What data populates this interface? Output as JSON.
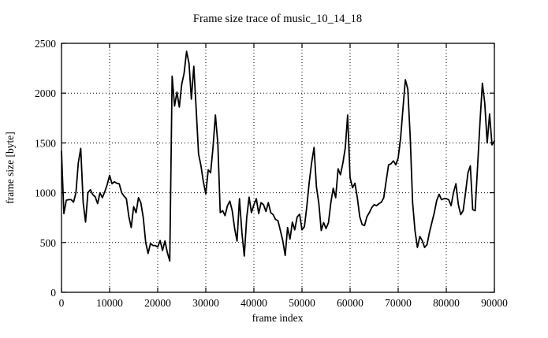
{
  "chart_data": {
    "type": "line",
    "title": "Frame size trace of music_10_14_18",
    "xlabel": "frame index",
    "ylabel": "frame size [byte]",
    "xlim": [
      0,
      90000
    ],
    "ylim": [
      0,
      2500
    ],
    "xticks": [
      0,
      10000,
      20000,
      30000,
      40000,
      50000,
      60000,
      70000,
      80000,
      90000
    ],
    "yticks": [
      0,
      500,
      1000,
      1500,
      2000,
      2500
    ],
    "grid": "dotted",
    "legend": false,
    "line_color": "#000000",
    "background_color": "#ffffff",
    "series_name": "frame size",
    "x_start": 0,
    "x_step": 500,
    "values": [
      1415,
      790,
      925,
      930,
      930,
      905,
      1000,
      1300,
      1445,
      900,
      706,
      1000,
      1030,
      980,
      960,
      890,
      1000,
      950,
      1010,
      1080,
      1175,
      1090,
      1110,
      1095,
      1090,
      1000,
      965,
      940,
      760,
      650,
      860,
      800,
      950,
      900,
      750,
      500,
      390,
      490,
      470,
      470,
      455,
      520,
      420,
      515,
      400,
      315,
      2170,
      1870,
      2010,
      1860,
      2090,
      2200,
      2420,
      2300,
      1940,
      2270,
      1840,
      1390,
      1270,
      1110,
      990,
      1230,
      1200,
      1450,
      1780,
      1490,
      800,
      820,
      770,
      870,
      915,
      820,
      640,
      515,
      940,
      600,
      365,
      750,
      955,
      800,
      880,
      940,
      790,
      900,
      880,
      812,
      900,
      800,
      780,
      732,
      720,
      620,
      520,
      370,
      650,
      535,
      705,
      627,
      757,
      784,
      627,
      660,
      860,
      1100,
      1300,
      1455,
      1060,
      890,
      620,
      700,
      640,
      700,
      900,
      1045,
      950,
      1240,
      1180,
      1300,
      1450,
      1780,
      1150,
      1050,
      1095,
      950,
      760,
      680,
      670,
      760,
      800,
      850,
      880,
      870,
      890,
      905,
      950,
      1120,
      1280,
      1290,
      1320,
      1280,
      1350,
      1550,
      1850,
      2135,
      2040,
      1550,
      900,
      620,
      450,
      560,
      520,
      450,
      480,
      600,
      700,
      800,
      920,
      985,
      930,
      940,
      940,
      930,
      870,
      1000,
      1090,
      880,
      780,
      820,
      1000,
      1200,
      1270,
      830,
      820,
      1250,
      1700,
      2100,
      1900,
      1500,
      1790,
      1480,
      1520
    ]
  }
}
